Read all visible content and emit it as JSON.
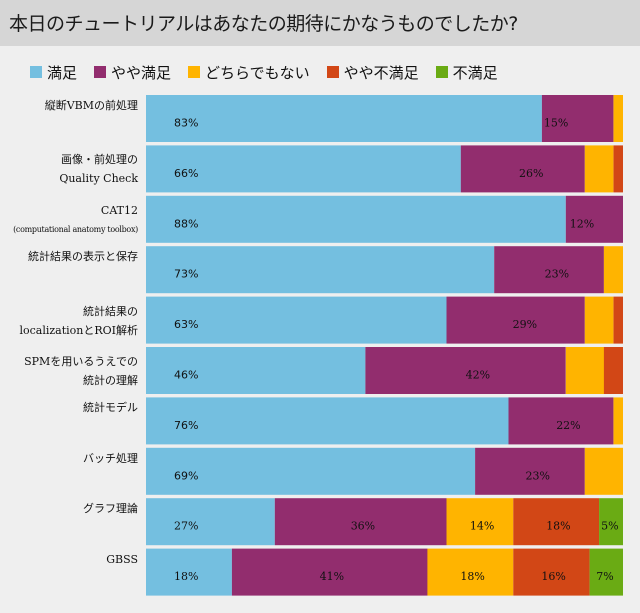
{
  "chart_data": {
    "type": "bar",
    "orientation": "horizontal-stacked-100",
    "title": "本日のチュートリアルはあなたの期待にかなうものでしたか?",
    "xlabel": "",
    "ylabel": "",
    "xlim": [
      0,
      100
    ],
    "grid": false,
    "legend_position": "top-left",
    "legend": [
      "満足",
      "やや満足",
      "どちらでもない",
      "やや不満足",
      "不満足"
    ],
    "colors": [
      "#74bfe0",
      "#922d6e",
      "#ffb400",
      "#d24716",
      "#6aab14"
    ],
    "categories": [
      {
        "line1": "縦断VBMの前処理",
        "line2": ""
      },
      {
        "line1": "画像・前処理の",
        "line2": "Quality Check"
      },
      {
        "line1": "CAT12",
        "line2": "(computational anatomy toolbox)"
      },
      {
        "line1": "統計結果の表示と保存",
        "line2": ""
      },
      {
        "line1": "統計結果の",
        "line2": "localizationとROI解析"
      },
      {
        "line1": "SPMを用いるうえでの",
        "line2": "統計の理解"
      },
      {
        "line1": "統計モデル",
        "line2": ""
      },
      {
        "line1": "バッチ処理",
        "line2": ""
      },
      {
        "line1": "グラフ理論",
        "line2": ""
      },
      {
        "line1": "GBSS",
        "line2": ""
      }
    ],
    "series": [
      {
        "name": "満足",
        "values": [
          83,
          66,
          88,
          73,
          63,
          46,
          76,
          69,
          27,
          18
        ]
      },
      {
        "name": "やや満足",
        "values": [
          15,
          26,
          12,
          23,
          29,
          42,
          22,
          23,
          36,
          41
        ]
      },
      {
        "name": "どちらでもない",
        "values": [
          2,
          6,
          0,
          4,
          6,
          8,
          2,
          8,
          14,
          18
        ]
      },
      {
        "name": "やや不満足",
        "values": [
          0,
          2,
          0,
          0,
          2,
          4,
          0,
          0,
          18,
          16
        ]
      },
      {
        "name": "不満足",
        "values": [
          0,
          0,
          0,
          0,
          0,
          0,
          0,
          0,
          5,
          7
        ]
      }
    ],
    "data_labels": [
      [
        "83%",
        "15%",
        "",
        "",
        ""
      ],
      [
        "66%",
        "26%",
        "",
        "",
        ""
      ],
      [
        "88%",
        "12%",
        "",
        "",
        ""
      ],
      [
        "73%",
        "23%",
        "",
        "",
        ""
      ],
      [
        "63%",
        "29%",
        "",
        "",
        ""
      ],
      [
        "46%",
        "42%",
        "",
        "",
        ""
      ],
      [
        "76%",
        "22%",
        "",
        "",
        ""
      ],
      [
        "69%",
        "23%",
        "",
        "",
        ""
      ],
      [
        "27%",
        "36%",
        "14%",
        "18%",
        "5%"
      ],
      [
        "18%",
        "41%",
        "18%",
        "16%",
        "7%"
      ]
    ]
  }
}
